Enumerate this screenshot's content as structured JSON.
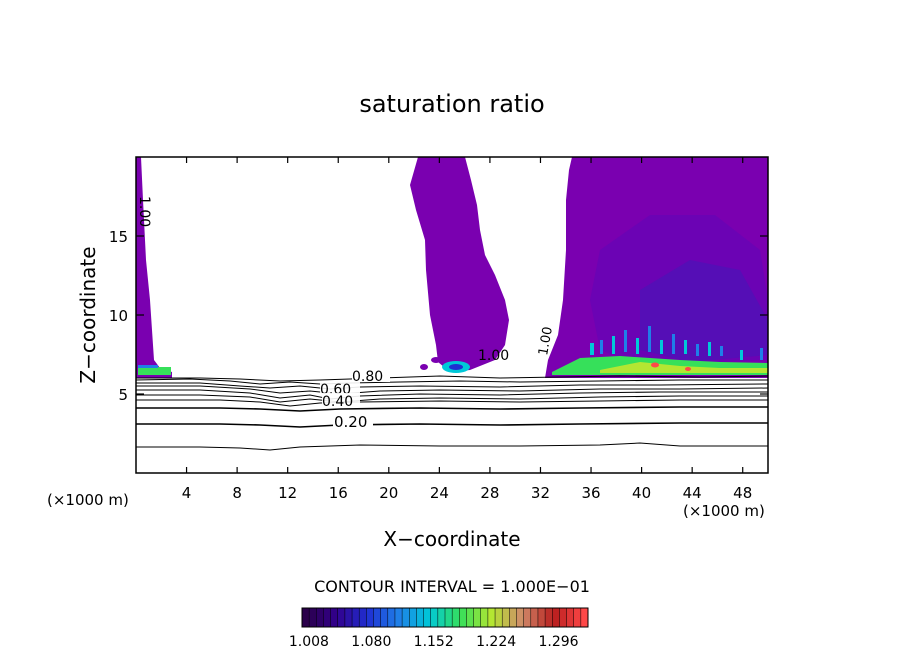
{
  "chart_data": {
    "type": "contour",
    "title": "saturation ratio",
    "xlabel": "X−coordinate",
    "ylabel": "Z−coordinate",
    "x_unit_left": "(×1000 m)",
    "x_unit_right": "(×1000 m)",
    "xlim": [
      0,
      50
    ],
    "ylim": [
      0,
      20
    ],
    "x_ticks": [
      4,
      8,
      12,
      16,
      20,
      24,
      28,
      32,
      36,
      40,
      44,
      48
    ],
    "y_ticks": [
      5,
      10,
      15
    ],
    "contour_interval_text": "CONTOUR INTERVAL = 1.000E−01",
    "contour_levels": [
      0.1,
      0.2,
      0.3,
      0.4,
      0.5,
      0.6,
      0.7,
      0.8,
      0.9,
      1.0
    ],
    "contour_labels": [
      {
        "text": "0.80",
        "x": 18.8,
        "z": 5.9
      },
      {
        "text": "0.60",
        "x": 16.2,
        "z": 5.3
      },
      {
        "text": "0.40",
        "x": 16.4,
        "z": 4.6
      },
      {
        "text": "0.20",
        "x": 17.3,
        "z": 3.4
      },
      {
        "text": "1.00",
        "x": 0.9,
        "z": 16.5
      },
      {
        "text": "1.00",
        "x": 27.0,
        "z": 7.3
      },
      {
        "text": "1.00",
        "x": 33.2,
        "z": 8.3
      }
    ],
    "colorbar": {
      "tick_labels": [
        "1.008",
        "1.080",
        "1.152",
        "1.224",
        "1.296"
      ],
      "min": 1.0,
      "max": 1.33,
      "colors": [
        "#2a004a",
        "#32008c",
        "#1f2fd2",
        "#1f7fe8",
        "#00c8d8",
        "#36e05a",
        "#b4e632",
        "#d08a6a",
        "#b81e1e",
        "#ff4848"
      ]
    },
    "supersaturated_regions": [
      {
        "name": "left column",
        "x_range": [
          0,
          3
        ],
        "z_range": [
          6.3,
          20
        ]
      },
      {
        "name": "middle plume",
        "x_range": [
          22.5,
          30
        ],
        "z_range": [
          6.3,
          20
        ]
      },
      {
        "name": "right cloud",
        "x_range": [
          32.5,
          50
        ],
        "z_range": [
          6.3,
          20
        ]
      }
    ]
  }
}
